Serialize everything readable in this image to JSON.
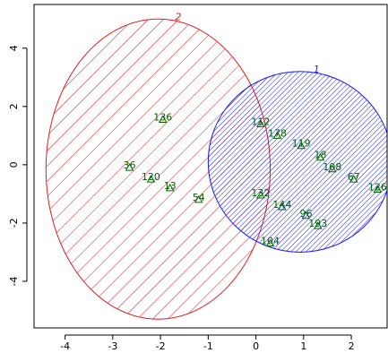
{
  "chart_data": {
    "type": "scatter",
    "xlim": [
      -4.65,
      2.75
    ],
    "ylim": [
      -5.6,
      5.5
    ],
    "x_ticks": [
      -4,
      -3,
      -2,
      -1,
      0,
      1,
      2
    ],
    "y_ticks": [
      -4,
      -2,
      0,
      2,
      4
    ],
    "grid": false,
    "point_color": "#006400",
    "clusters": [
      {
        "label": "2",
        "color": "#e41a1c",
        "center": [
          -1.7,
          -0.55
        ],
        "ellipse_x_extent": [
          -4.4,
          0.3
        ],
        "ellipse_y_extent": [
          -5.3,
          5.0
        ],
        "fill": "diagonal-hatch-sparse"
      },
      {
        "label": "1",
        "color": "#1a1aff",
        "center": [
          1.0,
          0.2
        ],
        "ellipse_x_extent": [
          -1.0,
          2.85
        ],
        "ellipse_y_extent": [
          -3.0,
          3.2
        ],
        "fill": "diagonal-hatch-dense"
      }
    ],
    "points": [
      {
        "label": "136",
        "x": -1.95,
        "y": 1.55
      },
      {
        "label": "36",
        "x": -2.65,
        "y": -0.1
      },
      {
        "label": "120",
        "x": -2.2,
        "y": -0.5
      },
      {
        "label": "13",
        "x": -1.8,
        "y": -0.8
      },
      {
        "label": "54",
        "x": -1.2,
        "y": -1.2
      },
      {
        "label": "112",
        "x": 0.1,
        "y": 1.4
      },
      {
        "label": "178",
        "x": 0.45,
        "y": 1.0
      },
      {
        "label": "119",
        "x": 0.95,
        "y": 0.65
      },
      {
        "label": "18",
        "x": 1.35,
        "y": 0.25
      },
      {
        "label": "108",
        "x": 1.6,
        "y": -0.15
      },
      {
        "label": "67",
        "x": 2.05,
        "y": -0.5
      },
      {
        "label": "126",
        "x": 2.55,
        "y": -0.85
      },
      {
        "label": "132",
        "x": 0.1,
        "y": -1.05
      },
      {
        "label": "144",
        "x": 0.55,
        "y": -1.45
      },
      {
        "label": "96",
        "x": 1.05,
        "y": -1.75
      },
      {
        "label": "193",
        "x": 1.3,
        "y": -2.1
      },
      {
        "label": "104",
        "x": 0.3,
        "y": -2.7
      }
    ]
  }
}
